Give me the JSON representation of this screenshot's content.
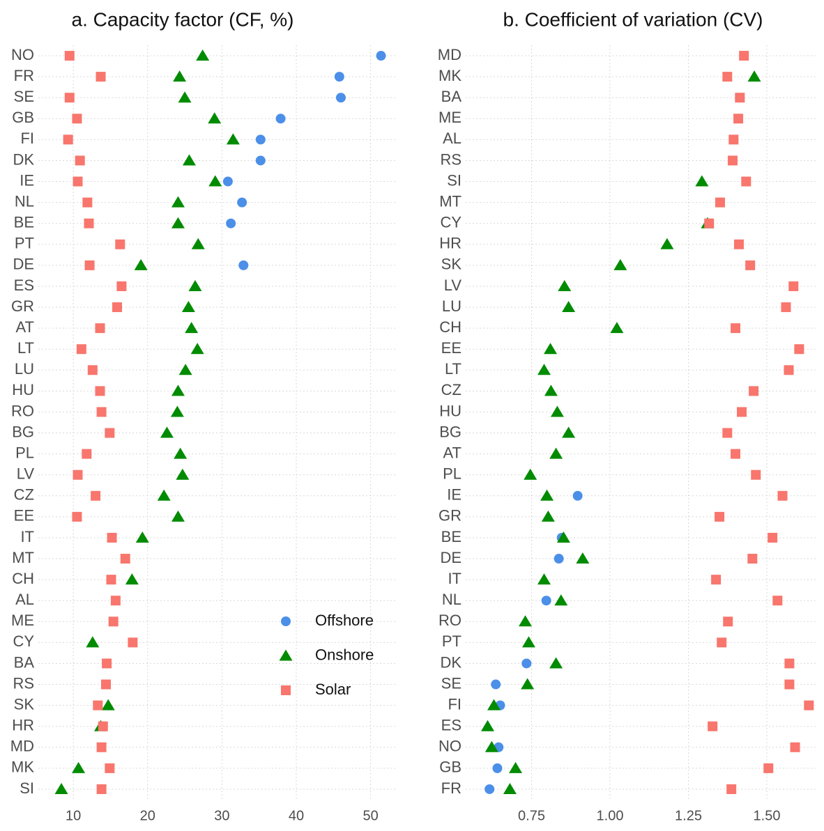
{
  "chart_data": [
    {
      "type": "dot",
      "title": "a. Capacity factor (CF, %)",
      "categories": [
        "NO",
        "FR",
        "SE",
        "GB",
        "FI",
        "DK",
        "IE",
        "NL",
        "BE",
        "PT",
        "DE",
        "ES",
        "GR",
        "AT",
        "LT",
        "LU",
        "HU",
        "RO",
        "BG",
        "PL",
        "LV",
        "CZ",
        "EE",
        "IT",
        "MT",
        "CH",
        "AL",
        "ME",
        "CY",
        "BA",
        "RS",
        "SK",
        "HR",
        "MD",
        "MK",
        "SI"
      ],
      "series": [
        {
          "name": "Offshore",
          "color": "#4b8fe8",
          "marker": "circle",
          "values": [
            51.4,
            45.8,
            46.0,
            37.9,
            35.2,
            35.2,
            30.8,
            32.7,
            31.2,
            null,
            32.9,
            null,
            null,
            null,
            null,
            null,
            null,
            null,
            null,
            null,
            null,
            null,
            null,
            null,
            null,
            null,
            null,
            null,
            null,
            null,
            null,
            null,
            null,
            null,
            null,
            null
          ]
        },
        {
          "name": "Onshore",
          "color": "#008b00",
          "marker": "triangle",
          "values": [
            27.4,
            24.3,
            25.0,
            29.0,
            31.5,
            25.6,
            29.1,
            24.1,
            24.1,
            26.8,
            19.1,
            26.4,
            25.5,
            25.9,
            26.7,
            25.1,
            24.1,
            24.0,
            22.6,
            24.4,
            24.7,
            22.2,
            24.1,
            19.3,
            null,
            17.9,
            null,
            null,
            12.6,
            null,
            null,
            14.7,
            13.7,
            null,
            10.7,
            8.4
          ]
        },
        {
          "name": "Solar",
          "color": "#f8766d",
          "marker": "square",
          "values": [
            9.5,
            13.7,
            9.5,
            10.5,
            9.3,
            10.9,
            10.6,
            11.9,
            12.1,
            16.3,
            12.2,
            16.5,
            15.9,
            13.6,
            11.1,
            12.6,
            13.6,
            13.8,
            14.9,
            11.8,
            10.6,
            13.0,
            10.5,
            15.2,
            17.0,
            15.1,
            15.7,
            15.4,
            18.0,
            14.5,
            14.4,
            13.3,
            14.0,
            13.8,
            14.9,
            13.8
          ]
        }
      ],
      "xlim": [
        5.3,
        53.6
      ],
      "xticks": [
        10,
        20,
        30,
        40,
        50
      ],
      "grid": true,
      "legend": "bottom-right"
    },
    {
      "type": "dot",
      "title": "b. Coefficient of variation (CV)",
      "categories": [
        "MD",
        "MK",
        "BA",
        "ME",
        "AL",
        "RS",
        "SI",
        "MT",
        "CY",
        "HR",
        "SK",
        "LV",
        "LU",
        "CH",
        "EE",
        "LT",
        "CZ",
        "HU",
        "BG",
        "AT",
        "PL",
        "IE",
        "GR",
        "BE",
        "DE",
        "IT",
        "NL",
        "RO",
        "PT",
        "DK",
        "SE",
        "FI",
        "ES",
        "NO",
        "GB",
        "FR"
      ],
      "series": [
        {
          "color": "#4b8fe8",
          "marker": "circle",
          "values": [
            null,
            null,
            null,
            null,
            null,
            null,
            null,
            null,
            null,
            null,
            null,
            null,
            null,
            null,
            null,
            null,
            null,
            null,
            null,
            null,
            null,
            0.897,
            null,
            0.846,
            0.837,
            null,
            0.797,
            null,
            null,
            0.734,
            0.636,
            0.65,
            null,
            0.645,
            0.641,
            0.616
          ]
        },
        {
          "color": "#008b00",
          "marker": "triangle",
          "values": [
            null,
            1.46,
            null,
            null,
            null,
            null,
            1.293,
            null,
            1.311,
            1.182,
            1.033,
            0.855,
            0.868,
            1.022,
            0.81,
            0.79,
            0.812,
            0.832,
            0.868,
            0.828,
            0.746,
            0.799,
            0.803,
            0.852,
            0.913,
            0.79,
            0.844,
            0.73,
            0.741,
            0.828,
            0.737,
            0.63,
            0.61,
            0.623,
            0.699,
            0.681
          ]
        },
        {
          "color": "#f8766d",
          "marker": "square",
          "values": [
            1.427,
            1.374,
            1.414,
            1.409,
            1.394,
            1.391,
            1.434,
            1.351,
            1.316,
            1.411,
            1.447,
            1.585,
            1.561,
            1.4,
            1.603,
            1.57,
            1.458,
            1.42,
            1.374,
            1.4,
            1.465,
            1.55,
            1.349,
            1.518,
            1.454,
            1.338,
            1.534,
            1.376,
            1.356,
            1.572,
            1.572,
            1.634,
            1.327,
            1.59,
            1.505,
            1.387
          ]
        }
      ],
      "xlim": [
        0.54,
        1.66
      ],
      "xticks": [
        {
          "value": 0.75,
          "label": "0.75"
        },
        {
          "value": 1.0,
          "label": "1.00"
        },
        {
          "value": 1.25,
          "label": "1.25"
        },
        {
          "value": 1.5,
          "label": "1.50"
        }
      ],
      "grid": true,
      "legend": "none"
    }
  ]
}
